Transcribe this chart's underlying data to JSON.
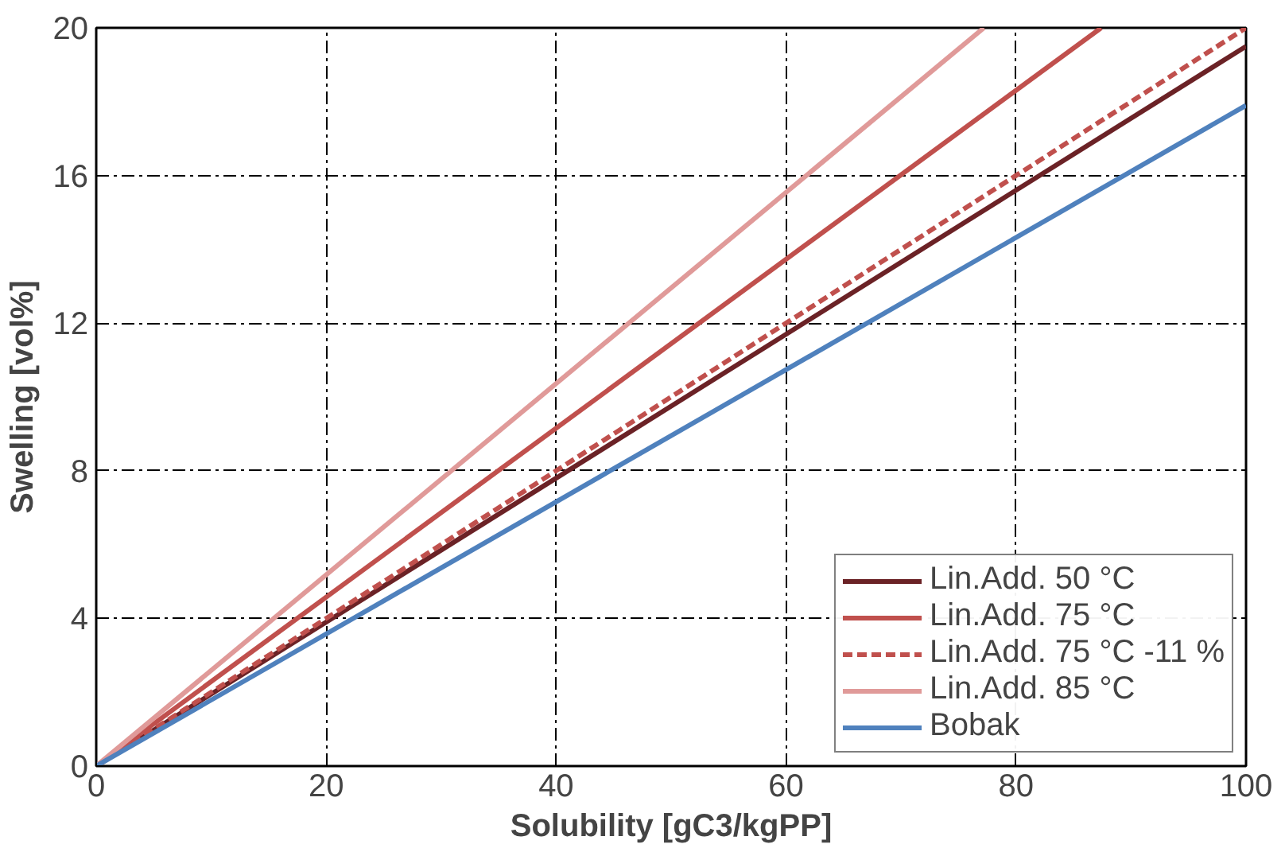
{
  "chart_data": {
    "type": "line",
    "xlabel": "Solubility [gC3/kgPP]",
    "ylabel": "Swelling [vol%]",
    "xlim": [
      0,
      100
    ],
    "ylim": [
      0,
      20
    ],
    "xticks": [
      0,
      20,
      40,
      60,
      80,
      100
    ],
    "yticks": [
      0,
      4,
      8,
      12,
      16,
      20
    ],
    "grid": true,
    "legend": "bottom right",
    "marker": "none",
    "series": [
      {
        "name": "Lin.Add. 50 °C",
        "color": "#6b2226",
        "x": [
          0,
          100
        ],
        "values": [
          0,
          19.5
        ]
      },
      {
        "name": "Lin.Add. 75 °C",
        "color": "#c0504d",
        "x": [
          0,
          87.4
        ],
        "values": [
          0,
          20
        ]
      },
      {
        "name": "Lin.Add. 75 °C -11 %",
        "color": "#c0504d",
        "line_style": "dashed",
        "x": [
          0,
          100
        ],
        "values": [
          0,
          20
        ]
      },
      {
        "name": "Lin.Add. 85 °C",
        "color": "#e09a99",
        "x": [
          0,
          77.2
        ],
        "values": [
          0,
          20
        ]
      },
      {
        "name": "Bobak",
        "color": "#4f81bd",
        "x": [
          0,
          100
        ],
        "values": [
          0,
          17.9
        ]
      }
    ]
  }
}
